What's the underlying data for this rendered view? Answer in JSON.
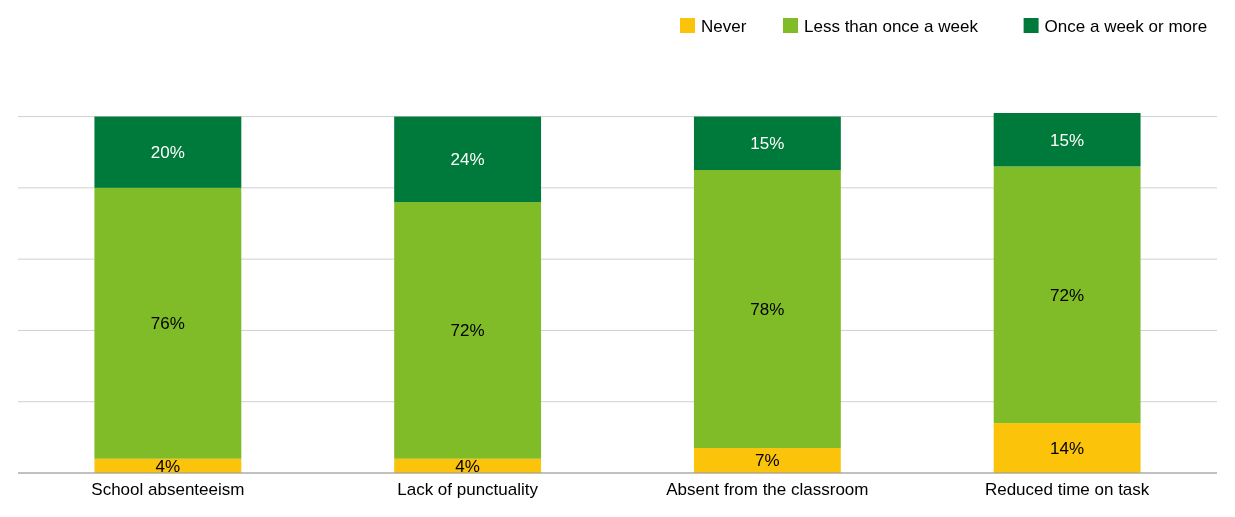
{
  "chart_data": {
    "type": "bar",
    "stacked": true,
    "categories": [
      "School absenteeism",
      "Lack of punctuality",
      "Absent from the classroom",
      "Reduced time on task"
    ],
    "series": [
      {
        "name": "Never",
        "color": "#fcc30b",
        "values": [
          4,
          4,
          7,
          14
        ],
        "value_labels": [
          "4%",
          "4%",
          "7%",
          "14%"
        ]
      },
      {
        "name": "Less than once a week",
        "color": "#80bc27",
        "values": [
          76,
          72,
          78,
          72
        ],
        "value_labels": [
          "76%",
          "72%",
          "78%",
          "72%"
        ]
      },
      {
        "name": "Once a week or more",
        "color": "#007a3a",
        "values": [
          20,
          24,
          15,
          15
        ],
        "value_labels": [
          "20%",
          "24%",
          "15%",
          "15%"
        ]
      }
    ],
    "tick_labels": "x",
    "grid": "y",
    "legend": "top right"
  }
}
